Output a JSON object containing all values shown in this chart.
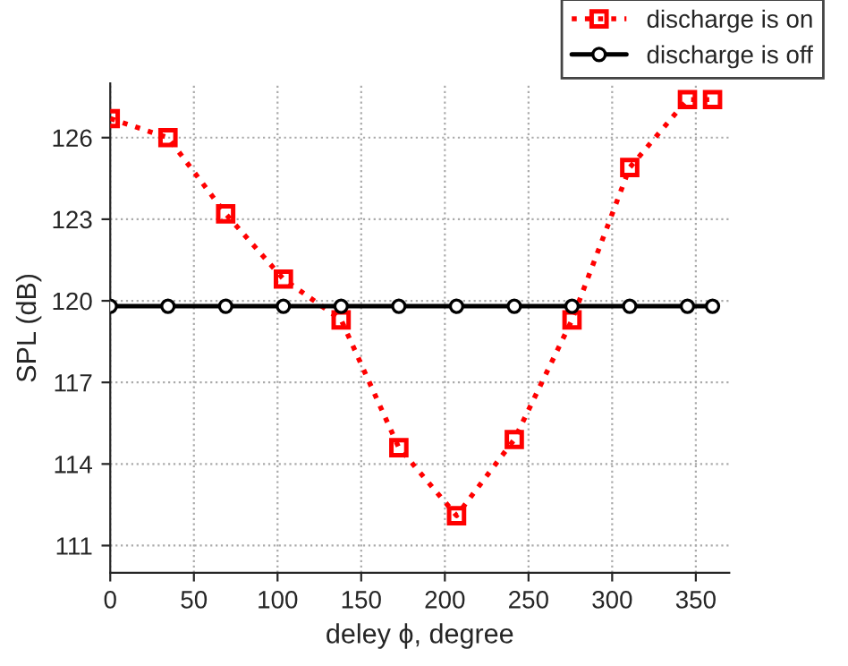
{
  "chart_data": {
    "type": "line",
    "xlabel": "deley ϕ, degree",
    "ylabel": "SPL (dB)",
    "x": [
      0,
      34.5,
      69,
      103.5,
      138,
      172.5,
      207,
      241.5,
      276,
      310.5,
      345,
      360
    ],
    "series": [
      {
        "name": "discharge is on",
        "color": "#ff0000",
        "marker": "square",
        "line_style": "dotted",
        "values": [
          126.7,
          126.0,
          123.2,
          120.8,
          119.3,
          114.6,
          112.1,
          114.9,
          119.3,
          124.9,
          127.4,
          127.4
        ]
      },
      {
        "name": "discharge is off",
        "color": "#000000",
        "marker": "circle",
        "line_style": "solid",
        "values": [
          119.8,
          119.8,
          119.8,
          119.8,
          119.8,
          119.8,
          119.8,
          119.8,
          119.8,
          119.8,
          119.8,
          119.8
        ]
      }
    ],
    "xlim": [
      0,
      370
    ],
    "ylim": [
      110,
      128
    ],
    "xticks": [
      0,
      50,
      100,
      150,
      200,
      250,
      300,
      350
    ],
    "yticks": [
      111,
      114,
      117,
      120,
      123,
      126
    ],
    "grid": true,
    "legend": "top right"
  }
}
